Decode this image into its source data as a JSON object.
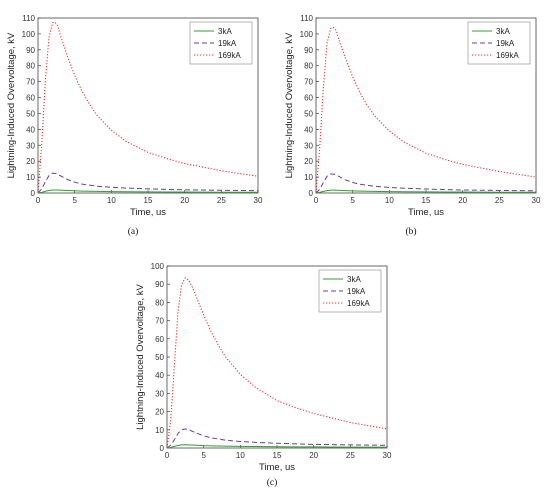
{
  "chart_data": [
    {
      "type": "line",
      "caption_label": "(a)",
      "xlabel": "Time, us",
      "ylabel": "Lightning-Induced Overvoltage, kV",
      "xlim": [
        0,
        30
      ],
      "ylim": [
        0,
        110
      ],
      "xticks": [
        0,
        5,
        10,
        15,
        20,
        25,
        30
      ],
      "yticks": [
        0,
        10,
        20,
        30,
        40,
        50,
        60,
        70,
        80,
        90,
        100,
        110
      ],
      "legend_position": "top-right",
      "series": [
        {
          "name": "3kA",
          "color": "#2ca02c",
          "style": "solid",
          "x": [
            0,
            0.5,
            1,
            1.5,
            2,
            2.5,
            3,
            4,
            5,
            6,
            8,
            10,
            12,
            15,
            18,
            20,
            25,
            30
          ],
          "y": [
            0,
            0.4,
            1.1,
            1.6,
            1.9,
            1.9,
            1.8,
            1.6,
            1.4,
            1.2,
            1.0,
            0.9,
            0.8,
            0.7,
            0.6,
            0.6,
            0.5,
            0.5
          ]
        },
        {
          "name": "19kA",
          "color": "#6a3d9a",
          "style": "dashed",
          "x": [
            0,
            0.5,
            1,
            1.5,
            2,
            2.5,
            3,
            4,
            5,
            6,
            8,
            10,
            12,
            15,
            18,
            20,
            25,
            30
          ],
          "y": [
            0,
            2.5,
            7,
            11,
            12.5,
            12.2,
            11,
            8.5,
            6.8,
            5.6,
            4.3,
            3.6,
            3.1,
            2.6,
            2.2,
            2.0,
            1.7,
            1.5
          ]
        },
        {
          "name": "169kA",
          "color": "#ff2a2a",
          "style": "dotted",
          "x": [
            0,
            0.5,
            1,
            1.5,
            2,
            2.3,
            2.7,
            3,
            4,
            5,
            6,
            7,
            8,
            10,
            12,
            15,
            18,
            20,
            25,
            30
          ],
          "y": [
            0,
            30,
            70,
            98,
            107,
            107.5,
            105,
            100,
            86,
            74,
            64,
            56,
            49,
            39.5,
            32.5,
            25.5,
            21,
            18.5,
            14,
            10.5
          ]
        }
      ]
    },
    {
      "type": "line",
      "caption_label": "(b)",
      "xlabel": "Time, us",
      "ylabel": "Lightning-Induced Overvoltage, kV",
      "xlim": [
        0,
        30
      ],
      "ylim": [
        0,
        110
      ],
      "xticks": [
        0,
        5,
        10,
        15,
        20,
        25,
        30
      ],
      "yticks": [
        0,
        10,
        20,
        30,
        40,
        50,
        60,
        70,
        80,
        90,
        100,
        110
      ],
      "legend_position": "top-right",
      "series": [
        {
          "name": "3kA",
          "color": "#2ca02c",
          "style": "solid",
          "x": [
            0,
            0.5,
            1,
            1.5,
            2,
            2.5,
            3,
            4,
            5,
            6,
            8,
            10,
            12,
            15,
            18,
            20,
            25,
            30
          ],
          "y": [
            0,
            0.4,
            1.0,
            1.5,
            1.8,
            1.8,
            1.7,
            1.5,
            1.3,
            1.2,
            1.0,
            0.9,
            0.8,
            0.7,
            0.6,
            0.6,
            0.5,
            0.5
          ]
        },
        {
          "name": "19kA",
          "color": "#6a3d9a",
          "style": "dashed",
          "x": [
            0,
            0.5,
            1,
            1.5,
            2,
            2.5,
            3,
            4,
            5,
            6,
            8,
            10,
            12,
            15,
            18,
            20,
            25,
            30
          ],
          "y": [
            0,
            2.3,
            6.5,
            10.5,
            12,
            11.8,
            10.7,
            8.3,
            6.6,
            5.5,
            4.2,
            3.5,
            3.0,
            2.5,
            2.1,
            1.9,
            1.6,
            1.4
          ]
        },
        {
          "name": "169kA",
          "color": "#ff2a2a",
          "style": "dotted",
          "x": [
            0,
            0.5,
            1,
            1.5,
            2,
            2.4,
            2.8,
            3,
            4,
            5,
            6,
            7,
            8,
            10,
            12,
            15,
            18,
            20,
            25,
            30
          ],
          "y": [
            0,
            28,
            66,
            94,
            103.5,
            104,
            102,
            98,
            85,
            73,
            63,
            55,
            48.5,
            39,
            32,
            25,
            20.5,
            18,
            13.5,
            10
          ]
        }
      ]
    },
    {
      "type": "line",
      "caption_label": "(c)",
      "xlabel": "Time, us",
      "ylabel": "Lightning-Induced Overvoltage, kV",
      "xlim": [
        0,
        30
      ],
      "ylim": [
        0,
        100
      ],
      "xticks": [
        0,
        5,
        10,
        15,
        20,
        25,
        30
      ],
      "yticks": [
        0,
        10,
        20,
        30,
        40,
        50,
        60,
        70,
        80,
        90,
        100
      ],
      "legend_position": "top-right",
      "series": [
        {
          "name": "3kA",
          "color": "#2ca02c",
          "style": "solid",
          "x": [
            0,
            0.5,
            1,
            1.5,
            2,
            2.5,
            3,
            4,
            5,
            6,
            8,
            10,
            12,
            15,
            18,
            20,
            25,
            30
          ],
          "y": [
            0,
            0.3,
            0.9,
            1.4,
            1.7,
            1.8,
            1.7,
            1.5,
            1.3,
            1.2,
            1.0,
            0.9,
            0.8,
            0.7,
            0.6,
            0.6,
            0.5,
            0.5
          ]
        },
        {
          "name": "19kA",
          "color": "#6a3d9a",
          "style": "dashed",
          "x": [
            0,
            0.5,
            1,
            1.5,
            2,
            2.5,
            3,
            4,
            5,
            6,
            8,
            10,
            12,
            15,
            18,
            20,
            25,
            30
          ],
          "y": [
            0,
            1.5,
            4.5,
            8,
            10,
            10.5,
            10,
            8.2,
            6.7,
            5.6,
            4.3,
            3.6,
            3.1,
            2.6,
            2.2,
            2.0,
            1.7,
            1.5
          ]
        },
        {
          "name": "169kA",
          "color": "#ff2a2a",
          "style": "dotted",
          "x": [
            0,
            0.5,
            1,
            1.5,
            2,
            2.5,
            3,
            3.5,
            4,
            5,
            6,
            7,
            8,
            10,
            12,
            15,
            18,
            20,
            25,
            30
          ],
          "y": [
            0,
            15,
            45,
            75,
            90,
            93.5,
            92,
            88,
            83,
            73,
            64,
            56.5,
            50,
            40.5,
            33.5,
            26,
            21.5,
            19,
            14,
            10.5
          ]
        }
      ]
    }
  ]
}
